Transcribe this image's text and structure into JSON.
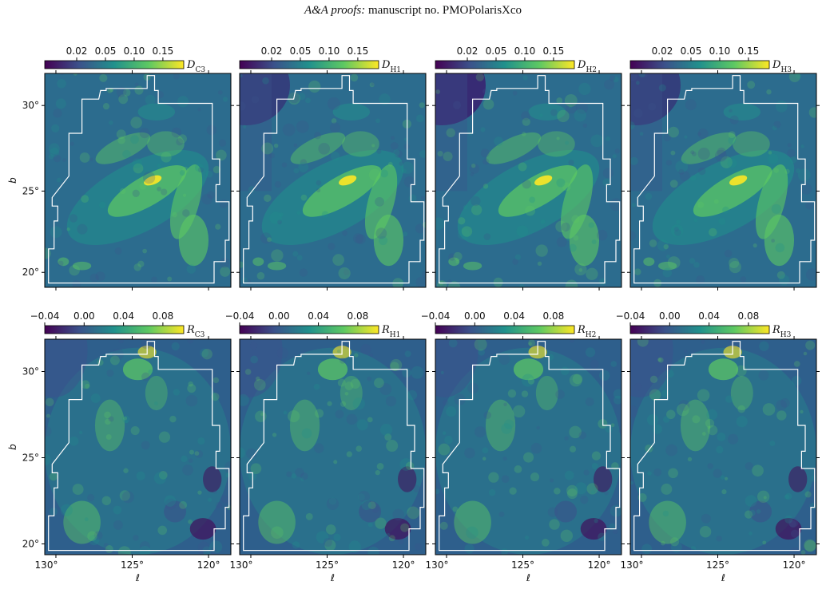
{
  "header": {
    "journal": "A&A proofs:",
    "manuscript": " manuscript no. PMOPolarisXco"
  },
  "figure": {
    "row_ylabel": "b",
    "col_xlabel": "ℓ",
    "y_ticks": [
      "30°",
      "25°",
      "20°"
    ],
    "x_ticks": [
      "130°",
      "125°",
      "120°"
    ],
    "rows": [
      {
        "id": "D",
        "colorbar_ticks": [
          "0.02",
          "0.05",
          "0.10",
          "0.15"
        ],
        "panels": [
          {
            "label_main": "D",
            "label_sub": "C3",
            "smooth": 0.45
          },
          {
            "label_main": "D",
            "label_sub": "H1",
            "smooth": 0.2
          },
          {
            "label_main": "D",
            "label_sub": "H2",
            "smooth": 0.2
          },
          {
            "label_main": "D",
            "label_sub": "H3",
            "smooth": 0.2
          }
        ]
      },
      {
        "id": "R",
        "colorbar_ticks": [
          "−0.04",
          "0.00",
          "0.04",
          "0.08"
        ],
        "panels": [
          {
            "label_main": "R",
            "label_sub": "C3"
          },
          {
            "label_main": "R",
            "label_sub": "H1"
          },
          {
            "label_main": "R",
            "label_sub": "H2"
          },
          {
            "label_main": "R",
            "label_sub": "H3"
          }
        ]
      }
    ],
    "colormap": [
      "#440154",
      "#3b528b",
      "#21918c",
      "#5ec962",
      "#fde725"
    ]
  }
}
